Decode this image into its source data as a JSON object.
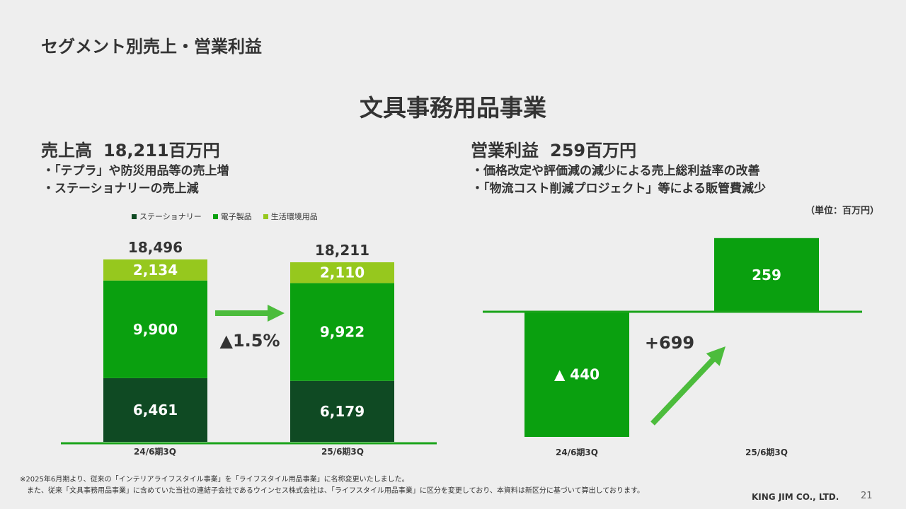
{
  "page_title": "セグメント別売上・営業利益",
  "main_title": "文具事務用品事業",
  "sales": {
    "label": "売上高",
    "value": "18,211百万円",
    "bullets": [
      "・「テプラ」や防災用品等の売上増",
      "・ステーショナリーの売上減"
    ]
  },
  "profit": {
    "label": "営業利益",
    "value": "259百万円",
    "bullets": [
      "・価格改定や評価減の減少による売上総利益率の改善",
      "・「物流コスト削減プロジェクト」等による販管費減少"
    ]
  },
  "unit_note": "（単位：百万円）",
  "colors": {
    "stationery": "#0f4a23",
    "electronics": "#0aa00f",
    "living": "#96c81e",
    "arrow": "#4cbc3c",
    "baseline": "#19a319"
  },
  "chart_data": [
    {
      "type": "bar",
      "stacked": true,
      "categories": [
        "24/6期3Q",
        "25/6期3Q"
      ],
      "series": [
        {
          "name": "ステーショナリー",
          "values": [
            6461,
            6179
          ],
          "labels": [
            "6,461",
            "6,179"
          ],
          "color": "#0f4a23"
        },
        {
          "name": "電子製品",
          "values": [
            9900,
            9922
          ],
          "labels": [
            "9,900",
            "9,922"
          ],
          "color": "#0aa00f"
        },
        {
          "name": "生活環境用品",
          "values": [
            2134,
            2110
          ],
          "labels": [
            "2,134",
            "2,110"
          ],
          "color": "#96c81e"
        }
      ],
      "totals": [
        18496,
        18211
      ],
      "total_labels": [
        "18,496",
        "18,211"
      ],
      "change_label": "▲1.5%",
      "legend_position": "top",
      "grid": false
    },
    {
      "type": "bar",
      "categories": [
        "24/6期3Q",
        "25/6期3Q"
      ],
      "values": [
        -440,
        259
      ],
      "labels": [
        "▲ 440",
        "259"
      ],
      "change_label": "+699",
      "color": "#0aa00f",
      "grid": false
    }
  ],
  "footnote": {
    "line1": "※2025年6月期より、従来の「インテリアライフスタイル事業」を「ライフスタイル用品事業」に名称変更いたしました。",
    "line2": "また、従来「文具事務用品事業」に含めていた当社の連結子会社であるウインセス株式会社は、「ライフスタイル用品事業」に区分を変更しており、本資料は新区分に基づいて算出しております。"
  },
  "company": "KING JIM CO., LTD.",
  "page_number": "21"
}
